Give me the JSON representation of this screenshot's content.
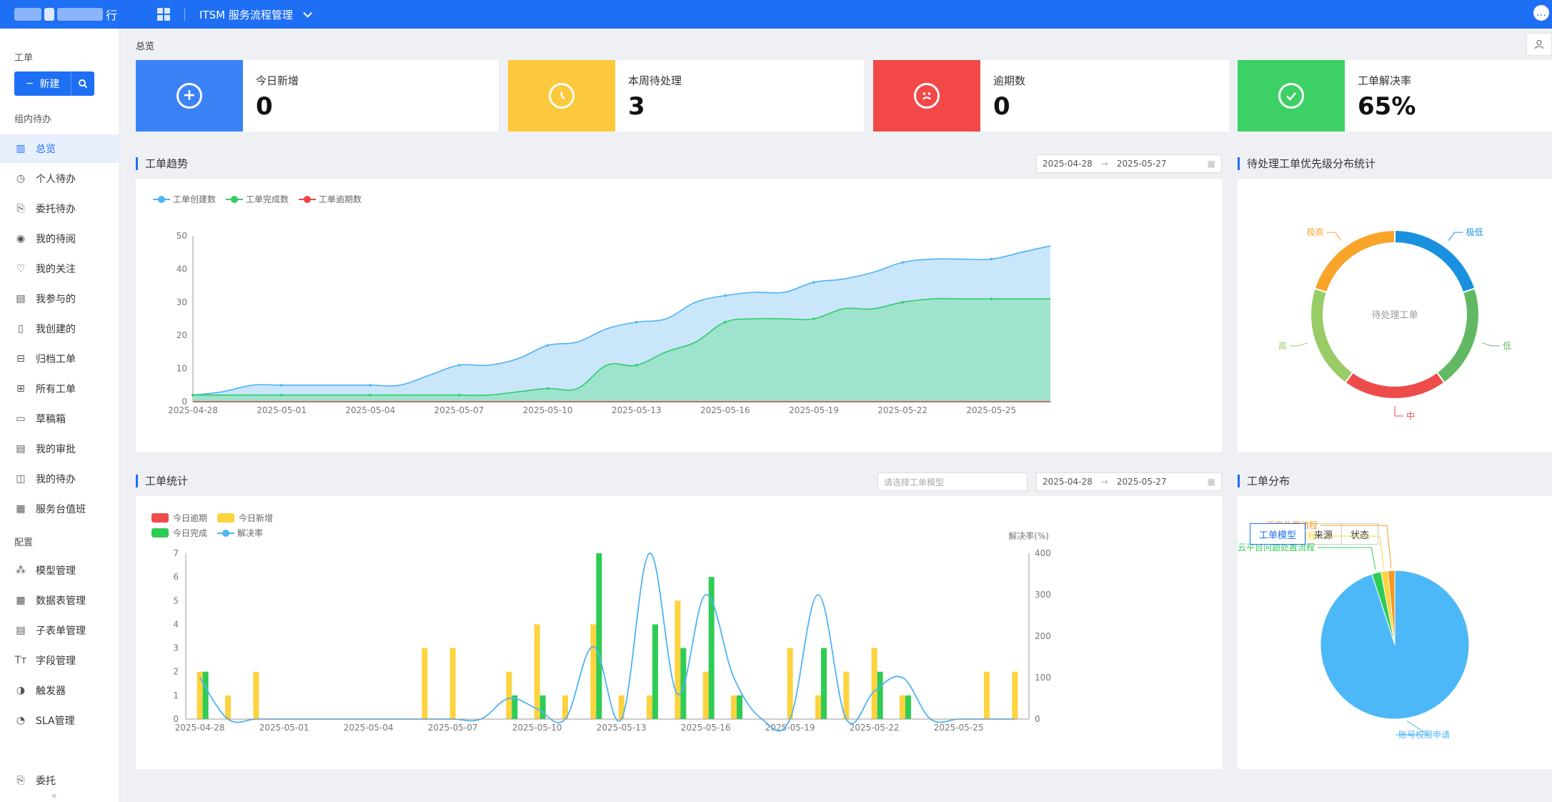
{
  "topbar": {
    "logo_text": "行",
    "system_title": "ITSM 服务流程管理"
  },
  "sidebar": {
    "group_ticket": "工单",
    "new_button": "新建",
    "group_team": "组内待办",
    "items": [
      {
        "label": "总览",
        "icon": "bar-chart"
      },
      {
        "label": "个人待办",
        "icon": "clock"
      },
      {
        "label": "委托待办",
        "icon": "delegate"
      },
      {
        "label": "我的待阅",
        "icon": "eye"
      },
      {
        "label": "我的关注",
        "icon": "heart"
      },
      {
        "label": "我参与的",
        "icon": "doc-user"
      },
      {
        "label": "我创建的",
        "icon": "doc-bookmark"
      },
      {
        "label": "归档工单",
        "icon": "archive"
      },
      {
        "label": "所有工单",
        "icon": "grid"
      },
      {
        "label": "草稿箱",
        "icon": "draft"
      },
      {
        "label": "我的审批",
        "icon": "doc-approve"
      },
      {
        "label": "我的待办",
        "icon": "todo"
      },
      {
        "label": "服务台值班",
        "icon": "doc-list"
      }
    ],
    "group_config": "配置",
    "config_items": [
      {
        "label": "模型管理",
        "icon": "nodes"
      },
      {
        "label": "数据表管理",
        "icon": "table"
      },
      {
        "label": "子表单管理",
        "icon": "sub-form"
      },
      {
        "label": "字段管理",
        "icon": "text-type"
      },
      {
        "label": "触发器",
        "icon": "trigger"
      },
      {
        "label": "SLA管理",
        "icon": "gauge"
      }
    ],
    "delegate_item": "委托",
    "collapse_glyph": "«"
  },
  "breadcrumb": "总览",
  "stats": [
    {
      "label": "今日新增",
      "value": "0",
      "color": "#3b82f6",
      "glyph": "+"
    },
    {
      "label": "本周待处理",
      "value": "3",
      "color": "#fdc93c",
      "glyph": "◔"
    },
    {
      "label": "逾期数",
      "value": "0",
      "color": "#f24848",
      "glyph": "☹"
    },
    {
      "label": "工单解决率",
      "value": "65%",
      "color": "#3dd165",
      "glyph": "✓"
    }
  ],
  "trend": {
    "title": "工单趋势",
    "date_start": "2025-04-28",
    "date_end": "2025-05-27",
    "legend": [
      "工单创建数",
      "工单完成数",
      "工单逾期数"
    ]
  },
  "priority": {
    "title": "待处理工单优先级分布统计",
    "center_label": "待处理工单",
    "labels": [
      "极低",
      "低",
      "中",
      "高",
      "极高"
    ]
  },
  "stats_chart": {
    "title": "工单统计",
    "select_placeholder": "请选择工单模型",
    "date_start": "2025-04-28",
    "date_end": "2025-05-27",
    "legend": [
      "今日逾期",
      "今日新增",
      "今日完成",
      "解决率"
    ],
    "right_axis_label": "解决率(%)"
  },
  "distribution": {
    "title": "工单分布",
    "tabs": [
      "工单模型",
      "来源",
      "状态"
    ],
    "labels": [
      "百度处置流程",
      "事件管理流程",
      "云平台问题处置流程",
      "账号权限申请"
    ]
  },
  "chart_data": [
    {
      "type": "area",
      "title": "工单趋势",
      "x": [
        "2025-04-28",
        "2025-04-29",
        "2025-04-30",
        "2025-05-01",
        "2025-05-02",
        "2025-05-03",
        "2025-05-04",
        "2025-05-05",
        "2025-05-06",
        "2025-05-07",
        "2025-05-08",
        "2025-05-09",
        "2025-05-10",
        "2025-05-11",
        "2025-05-12",
        "2025-05-13",
        "2025-05-14",
        "2025-05-15",
        "2025-05-16",
        "2025-05-17",
        "2025-05-18",
        "2025-05-19",
        "2025-05-20",
        "2025-05-21",
        "2025-05-22",
        "2025-05-23",
        "2025-05-24",
        "2025-05-25",
        "2025-05-26",
        "2025-05-27"
      ],
      "xticks": [
        "2025-04-28",
        "2025-05-01",
        "2025-05-04",
        "2025-05-07",
        "2025-05-10",
        "2025-05-13",
        "2025-05-16",
        "2025-05-19",
        "2025-05-22",
        "2025-05-25"
      ],
      "ylim": [
        0,
        50
      ],
      "yticks": [
        0,
        10,
        20,
        30,
        40,
        50
      ],
      "series": [
        {
          "name": "工单创建数",
          "color": "#4fb3f5",
          "fill": "#c6e5fb",
          "values": [
            2,
            3,
            5,
            5,
            5,
            5,
            5,
            5,
            8,
            11,
            11,
            13,
            17,
            18,
            22,
            24,
            25,
            30,
            32,
            33,
            33,
            36,
            37,
            39,
            42,
            43,
            43,
            43,
            45,
            47
          ]
        },
        {
          "name": "工单完成数",
          "color": "#33cc66",
          "fill": "#9be3cb",
          "values": [
            2,
            2,
            2,
            2,
            2,
            2,
            2,
            2,
            2,
            2,
            2,
            3,
            4,
            4,
            11,
            11,
            15,
            18,
            24,
            25,
            25,
            25,
            28,
            28,
            30,
            31,
            31,
            31,
            31,
            31
          ]
        },
        {
          "name": "工单逾期数",
          "color": "#ee4444",
          "values": [
            0,
            0,
            0,
            0,
            0,
            0,
            0,
            0,
            0,
            0,
            0,
            0,
            0,
            0,
            0,
            0,
            0,
            0,
            0,
            0,
            0,
            0,
            0,
            0,
            0,
            0,
            0,
            0,
            0,
            0
          ]
        }
      ]
    },
    {
      "type": "pie",
      "title": "待处理工单优先级分布统计",
      "donut": true,
      "slices": [
        {
          "label": "极低",
          "value": 20,
          "color": "#1a90e0"
        },
        {
          "label": "低",
          "value": 20,
          "color": "#63b963"
        },
        {
          "label": "中",
          "value": 20,
          "color": "#ee4b4b"
        },
        {
          "label": "高",
          "value": 20,
          "color": "#99cc66"
        },
        {
          "label": "极高",
          "value": 20,
          "color": "#f9a52a"
        }
      ]
    },
    {
      "type": "bar",
      "title": "工单统计",
      "x": [
        "2025-04-28",
        "2025-04-29",
        "2025-04-30",
        "2025-05-01",
        "2025-05-02",
        "2025-05-03",
        "2025-05-04",
        "2025-05-05",
        "2025-05-06",
        "2025-05-07",
        "2025-05-08",
        "2025-05-09",
        "2025-05-10",
        "2025-05-11",
        "2025-05-12",
        "2025-05-13",
        "2025-05-14",
        "2025-05-15",
        "2025-05-16",
        "2025-05-17",
        "2025-05-18",
        "2025-05-19",
        "2025-05-20",
        "2025-05-21",
        "2025-05-22",
        "2025-05-23",
        "2025-05-24",
        "2025-05-25",
        "2025-05-26",
        "2025-05-27"
      ],
      "xticks": [
        "2025-04-28",
        "2025-05-01",
        "2025-05-04",
        "2025-05-07",
        "2025-05-10",
        "2025-05-13",
        "2025-05-16",
        "2025-05-19",
        "2025-05-22",
        "2025-05-25"
      ],
      "ylim": [
        0,
        7
      ],
      "y2lim": [
        0,
        400
      ],
      "y2label": "解决率(%)",
      "series": [
        {
          "name": "今日逾期",
          "color": "#ee4b4b",
          "values": [
            0,
            0,
            0,
            0,
            0,
            0,
            0,
            0,
            0,
            0,
            0,
            0,
            0,
            0,
            0,
            0,
            0,
            0,
            0,
            0,
            0,
            0,
            0,
            0,
            0,
            0,
            0,
            0,
            0,
            0
          ]
        },
        {
          "name": "今日新增",
          "color": "#fdd33f",
          "values": [
            2,
            1,
            2,
            0,
            0,
            0,
            0,
            0,
            3,
            3,
            0,
            2,
            4,
            1,
            4,
            1,
            1,
            5,
            2,
            1,
            0,
            3,
            1,
            2,
            3,
            1,
            0,
            0,
            2,
            2
          ]
        },
        {
          "name": "今日完成",
          "color": "#2fcc55",
          "values": [
            2,
            0,
            0,
            0,
            0,
            0,
            0,
            0,
            0,
            0,
            0,
            1,
            1,
            0,
            7,
            0,
            4,
            3,
            6,
            1,
            0,
            0,
            3,
            0,
            2,
            1,
            0,
            0,
            0,
            0
          ]
        },
        {
          "name": "解决率",
          "color": "#4fb3f5",
          "axis": "right",
          "values": [
            100,
            0,
            0,
            0,
            0,
            0,
            0,
            0,
            0,
            0,
            0,
            50,
            25,
            0,
            175,
            0,
            400,
            60,
            300,
            100,
            0,
            0,
            300,
            0,
            67,
            100,
            0,
            0,
            0,
            0
          ]
        }
      ]
    },
    {
      "type": "pie",
      "title": "工单分布",
      "slices": [
        {
          "label": "账号权限申请",
          "value": 95,
          "color": "#4db8f8"
        },
        {
          "label": "云平台问题处置流程",
          "value": 2,
          "color": "#2fcc55"
        },
        {
          "label": "事件管理流程",
          "value": 1.5,
          "color": "#fdd33f"
        },
        {
          "label": "百度处置流程",
          "value": 1.5,
          "color": "#f79a1c"
        }
      ]
    }
  ]
}
